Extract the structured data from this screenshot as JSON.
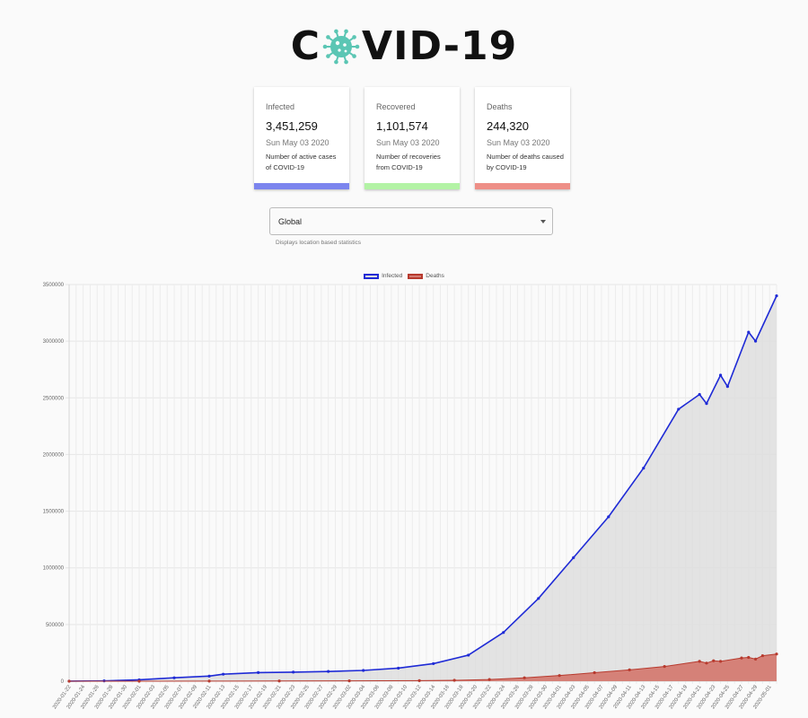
{
  "header": {
    "title_left": "C",
    "title_right": "VID-19",
    "virus_icon": "virus-icon",
    "virus_color": "#5bc6b4"
  },
  "cards": [
    {
      "label": "Infected",
      "value": "3,451,259",
      "date": "Sun May 03 2020",
      "description": "Number of active cases of COVID-19",
      "color": "#7c85ee"
    },
    {
      "label": "Recovered",
      "value": "1,101,574",
      "date": "Sun May 03 2020",
      "description": "Number of recoveries from COVID-19",
      "color": "#b3f3a5"
    },
    {
      "label": "Deaths",
      "value": "244,320",
      "date": "Sun May 03 2020",
      "description": "Number of deaths caused by COVID-19",
      "color": "#ee8f87"
    }
  ],
  "location": {
    "selected": "Global",
    "helper": "Displays location based statistics"
  },
  "chart_data": {
    "type": "line",
    "legend": [
      {
        "name": "Infected",
        "color": "#1f2bd6",
        "fill": "#dedede"
      },
      {
        "name": "Deaths",
        "color": "#b73a2e",
        "fill": "#d47b72"
      }
    ],
    "legend_position": "top-center",
    "ylim": [
      0,
      3500000
    ],
    "yticks": [
      0,
      500000,
      1000000,
      1500000,
      2000000,
      2500000,
      3000000,
      3500000
    ],
    "grid": true,
    "x_start": "2020-01-22",
    "x_end": "2020-05-02",
    "x_tick_labels": [
      "2020-01-22",
      "2020-01-24",
      "2020-01-26",
      "2020-01-28",
      "2020-01-30",
      "2020-02-01",
      "2020-02-03",
      "2020-02-05",
      "2020-02-07",
      "2020-02-09",
      "2020-02-11",
      "2020-02-13",
      "2020-02-15",
      "2020-02-17",
      "2020-02-19",
      "2020-02-21",
      "2020-02-23",
      "2020-02-25",
      "2020-02-27",
      "2020-02-29",
      "2020-03-02",
      "2020-03-04",
      "2020-03-06",
      "2020-03-08",
      "2020-03-10",
      "2020-03-12",
      "2020-03-14",
      "2020-03-16",
      "2020-03-18",
      "2020-03-20",
      "2020-03-22",
      "2020-03-24",
      "2020-03-26",
      "2020-03-28",
      "2020-03-30",
      "2020-04-01",
      "2020-04-03",
      "2020-04-05",
      "2020-04-07",
      "2020-04-09",
      "2020-04-11",
      "2020-04-13",
      "2020-04-15",
      "2020-04-17",
      "2020-04-19",
      "2020-04-21",
      "2020-04-23",
      "2020-04-25",
      "2020-04-27",
      "2020-04-29",
      "2020-05-01"
    ],
    "series": [
      {
        "name": "Infected",
        "x": [
          "2020-01-22",
          "2020-01-27",
          "2020-02-01",
          "2020-02-06",
          "2020-02-11",
          "2020-02-13",
          "2020-02-18",
          "2020-02-23",
          "2020-02-28",
          "2020-03-04",
          "2020-03-09",
          "2020-03-14",
          "2020-03-19",
          "2020-03-24",
          "2020-03-29",
          "2020-04-03",
          "2020-04-08",
          "2020-04-13",
          "2020-04-18",
          "2020-04-21",
          "2020-04-22",
          "2020-04-24",
          "2020-04-25",
          "2020-04-28",
          "2020-04-29",
          "2020-05-02"
        ],
        "values": [
          550,
          3000,
          12000,
          30000,
          45000,
          62000,
          76000,
          80000,
          86000,
          95000,
          115000,
          155000,
          230000,
          430000,
          730000,
          1090000,
          1450000,
          1880000,
          2400000,
          2530000,
          2450000,
          2700000,
          2600000,
          3080000,
          3000000,
          3400000
        ]
      },
      {
        "name": "Deaths",
        "x": [
          "2020-01-22",
          "2020-02-01",
          "2020-02-11",
          "2020-02-21",
          "2020-03-02",
          "2020-03-12",
          "2020-03-17",
          "2020-03-22",
          "2020-03-27",
          "2020-04-01",
          "2020-04-06",
          "2020-04-11",
          "2020-04-16",
          "2020-04-21",
          "2020-04-22",
          "2020-04-23",
          "2020-04-24",
          "2020-04-27",
          "2020-04-28",
          "2020-04-29",
          "2020-04-30",
          "2020-05-02"
        ],
        "values": [
          17,
          259,
          1118,
          2250,
          3100,
          5000,
          8000,
          15000,
          30000,
          50000,
          75000,
          100000,
          130000,
          175000,
          160000,
          180000,
          175000,
          205000,
          210000,
          195000,
          225000,
          240000
        ]
      }
    ]
  }
}
